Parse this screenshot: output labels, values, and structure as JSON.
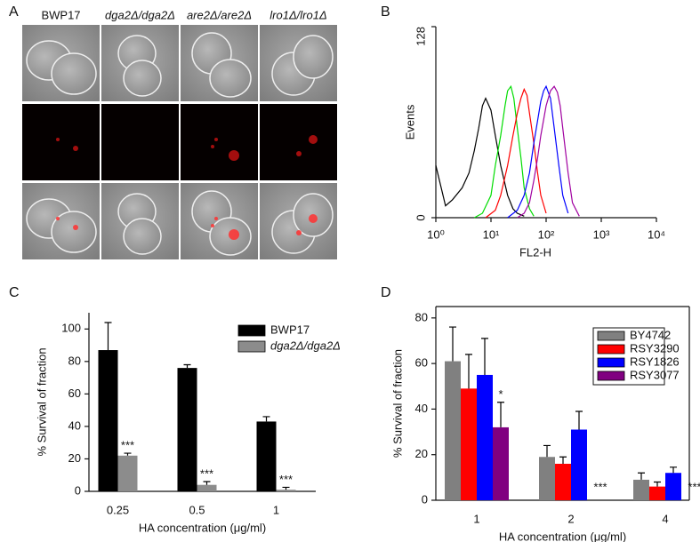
{
  "panel_a": {
    "label": "A",
    "columns": [
      "BWP17",
      "dga2Δ/dga2Δ",
      "are2Δ/are2Δ",
      "lro1Δ/lro1Δ"
    ]
  },
  "chart_data": [
    {
      "panel_label": "B",
      "type": "line",
      "x_label": "FL2-H",
      "y_label": "Events",
      "x_log": true,
      "xlim": [
        1,
        10000
      ],
      "xticks": [
        {
          "value": 1,
          "label": "10⁰"
        },
        {
          "value": 10,
          "label": "10¹"
        },
        {
          "value": 100,
          "label": "10²"
        },
        {
          "value": 1000,
          "label": "10³"
        },
        {
          "value": 10000,
          "label": "10⁴"
        }
      ],
      "ylim": [
        0,
        128
      ],
      "yticks": [
        0,
        128
      ],
      "series": [
        {
          "color": "#000000",
          "x": [
            1,
            1.5,
            2,
            3,
            4,
            5,
            6,
            7,
            8,
            10,
            12,
            15,
            20,
            25,
            30,
            40
          ],
          "values": [
            35,
            8,
            12,
            20,
            30,
            45,
            60,
            75,
            80,
            72,
            55,
            35,
            15,
            6,
            3,
            1
          ]
        },
        {
          "color": "#00dd00",
          "x": [
            5,
            7,
            10,
            12,
            15,
            18,
            20,
            23,
            26,
            30,
            35,
            40,
            50,
            60
          ],
          "values": [
            0,
            3,
            15,
            35,
            55,
            75,
            85,
            88,
            80,
            60,
            40,
            20,
            6,
            1
          ]
        },
        {
          "color": "#ff0000",
          "x": [
            8,
            12,
            15,
            20,
            25,
            30,
            35,
            40,
            45,
            50,
            60,
            70,
            80,
            100
          ],
          "values": [
            0,
            5,
            15,
            35,
            55,
            70,
            80,
            86,
            82,
            70,
            50,
            30,
            15,
            3
          ]
        },
        {
          "color": "#0000ff",
          "x": [
            20,
            30,
            40,
            50,
            60,
            70,
            80,
            90,
            100,
            120,
            140,
            170,
            200,
            250
          ],
          "values": [
            0,
            5,
            15,
            30,
            50,
            65,
            78,
            85,
            88,
            80,
            60,
            35,
            15,
            3
          ]
        },
        {
          "color": "#a000a0",
          "x": [
            30,
            40,
            50,
            60,
            70,
            80,
            100,
            120,
            140,
            160,
            180,
            200,
            250,
            300,
            400
          ],
          "values": [
            0,
            3,
            10,
            25,
            40,
            55,
            75,
            85,
            88,
            84,
            75,
            60,
            30,
            10,
            1
          ]
        }
      ]
    },
    {
      "panel_label": "C",
      "type": "bar",
      "x_label": "HA concentration (μg/ml)",
      "y_label": "% Survival of fraction",
      "categories": [
        "0.25",
        "0.5",
        "1"
      ],
      "ylim": [
        0,
        110
      ],
      "yticks": [
        0,
        20,
        40,
        60,
        80,
        100
      ],
      "series": [
        {
          "name": "BWP17",
          "color": "#000000",
          "values": [
            87,
            76,
            43
          ],
          "errors": [
            17,
            2,
            3
          ]
        },
        {
          "name": "dga2Δ/dga2Δ",
          "color": "#8c8c8c",
          "values": [
            22,
            4,
            1
          ],
          "errors": [
            1.5,
            2,
            1.5
          ]
        }
      ],
      "annotations": [
        "***",
        "***",
        "***"
      ]
    },
    {
      "panel_label": "D",
      "type": "bar",
      "x_label": "HA concentration (μg/ml)",
      "y_label": "% Survival of fraction",
      "categories": [
        "1",
        "2",
        "4"
      ],
      "ylim": [
        0,
        85
      ],
      "yticks": [
        0,
        20,
        40,
        60,
        80
      ],
      "frame": true,
      "series": [
        {
          "name": "BY4742",
          "color": "#808080",
          "values": [
            61,
            19,
            9
          ],
          "errors": [
            15,
            5,
            3
          ]
        },
        {
          "name": "RSY3290",
          "color": "#ff0000",
          "values": [
            49,
            16,
            6
          ],
          "errors": [
            15,
            3,
            2
          ]
        },
        {
          "name": "RSY1826",
          "color": "#0000ff",
          "values": [
            55,
            31,
            12
          ],
          "errors": [
            16,
            8,
            2.5
          ]
        },
        {
          "name": "RSY3077",
          "color": "#800080",
          "values": [
            32,
            null,
            null
          ],
          "errors": [
            11,
            null,
            null
          ]
        }
      ],
      "annotations": [
        "*",
        "***",
        "***"
      ]
    }
  ]
}
